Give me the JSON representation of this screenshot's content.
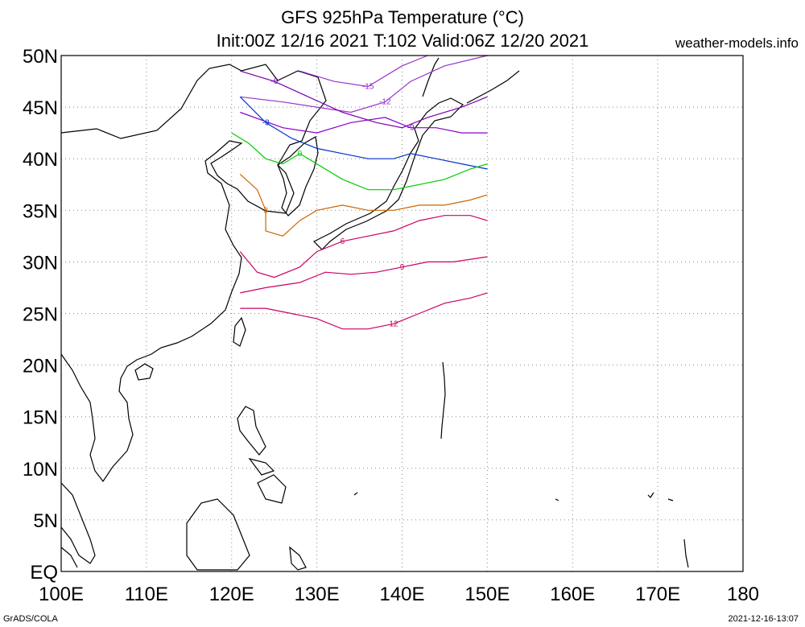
{
  "header": {
    "title_line1": "GFS 925hPa Temperature (°C)",
    "title_line2": "Init:00Z 12/16 2021 T:102 Valid:06Z 12/20 2021",
    "site": "weather-models.info"
  },
  "footer": {
    "credit": "GrADS/COLA",
    "timestamp": "2021-12-16-13:07"
  },
  "axes": {
    "lat_labels": [
      "50N",
      "45N",
      "40N",
      "35N",
      "30N",
      "25N",
      "20N",
      "15N",
      "10N",
      "5N",
      "EQ"
    ],
    "lon_labels": [
      "100E",
      "110E",
      "120E",
      "130E",
      "140E",
      "150E",
      "160E",
      "170E",
      "180"
    ]
  },
  "map": {
    "lon_range": [
      100,
      180
    ],
    "lat_range": [
      0,
      50
    ],
    "gridlines": true,
    "data_region": {
      "lon": [
        120,
        150
      ],
      "lat": [
        20,
        50
      ]
    }
  },
  "contours": [
    {
      "value": -15,
      "label": "-15",
      "color": "#9933cc"
    },
    {
      "value": -12,
      "label": "-12",
      "color": "#9933cc"
    },
    {
      "value": -9,
      "label": "-9",
      "color": "#8800cc"
    },
    {
      "value": -6,
      "label": "-6",
      "color": "#7a00b0"
    },
    {
      "value": -3,
      "label": "-3",
      "color": "#0033cc"
    },
    {
      "value": 0,
      "label": "0",
      "color": "#00cc00"
    },
    {
      "value": 3,
      "label": "3",
      "color": "#cc6600"
    },
    {
      "value": 6,
      "label": "6",
      "color": "#cc0066"
    },
    {
      "value": 9,
      "label": "9",
      "color": "#cc0066"
    },
    {
      "value": 12,
      "label": "12",
      "color": "#cc0066"
    }
  ],
  "colors": {
    "coast": "#000000",
    "grid": "#888888"
  }
}
